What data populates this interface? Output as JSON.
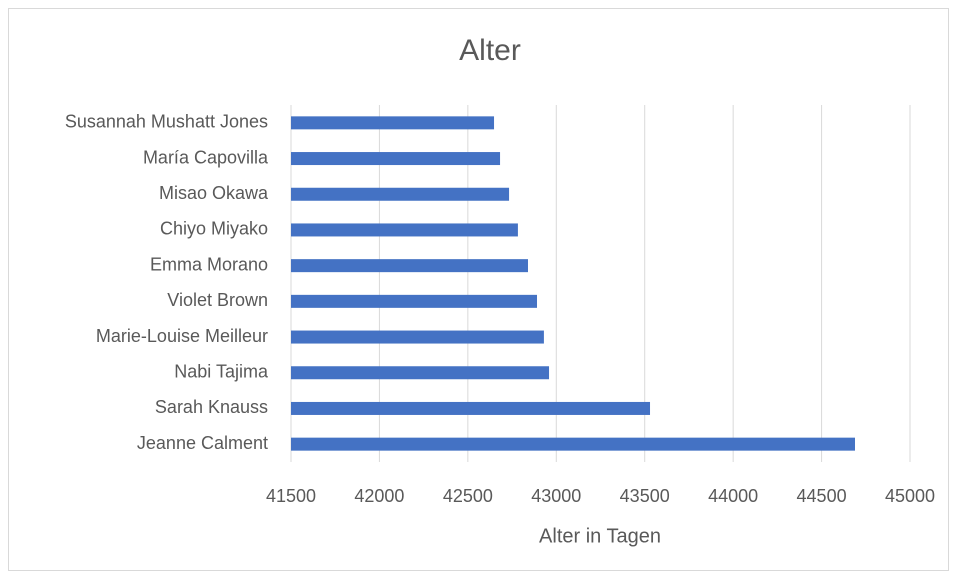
{
  "chart_data": {
    "type": "hbar",
    "title": "Alter",
    "xlabel": "Alter in Tagen",
    "categories": [
      "Jeanne Calment",
      "Sarah Knauss",
      "Nabi Tajima",
      "Marie-Louise Meilleur",
      "Violet Brown",
      "Emma Morano",
      "Chiyo Miyako",
      "Misao Okawa",
      "María Capovilla",
      "Susannah Mushatt Jones"
    ],
    "values": [
      44689,
      43530,
      42959,
      42930,
      42891,
      42840,
      42783,
      42733,
      42682,
      42648
    ],
    "color": "#4472c4",
    "xlim": [
      41500,
      45000
    ],
    "xticks": [
      41500,
      42000,
      42500,
      43000,
      43500,
      44000,
      44500,
      45000
    ],
    "grid": true
  }
}
